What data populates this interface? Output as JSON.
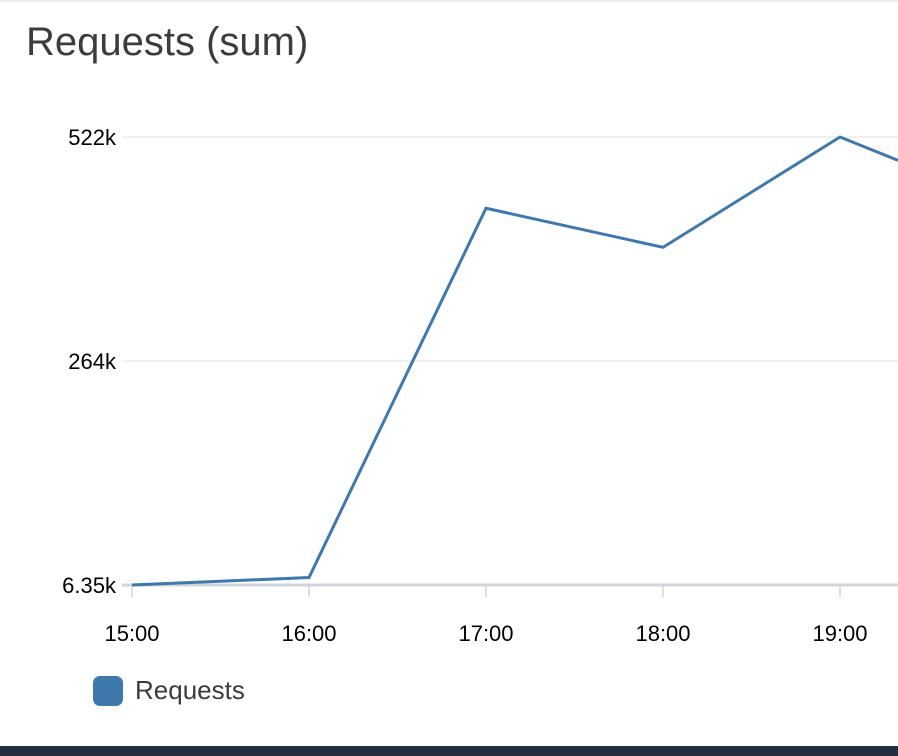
{
  "widget": {
    "title": "Requests (sum)"
  },
  "colors": {
    "series": "#3f78ad",
    "grid": "#e9ebed",
    "baseline": "#d1d5db",
    "text": "#000000",
    "title": "#3c3c3c"
  },
  "chart_data": {
    "type": "line",
    "title": "Requests (sum)",
    "xlabel": "",
    "ylabel": "",
    "x": [
      "15:00",
      "16:00",
      "17:00",
      "18:00",
      "19:00"
    ],
    "x_ticks": [
      "15:00",
      "16:00",
      "17:00",
      "18:00",
      "19:00"
    ],
    "y_ticks": [
      {
        "value": 522000,
        "label": "522k"
      },
      {
        "value": 264000,
        "label": "264k"
      },
      {
        "value": 6350,
        "label": "6.35k"
      }
    ],
    "ylim": [
      6350,
      522000
    ],
    "grid": true,
    "legend": "bottom-left",
    "series": [
      {
        "name": "Requests",
        "color": "#3f78ad",
        "values": [
          6350,
          15000,
          440000,
          395000,
          522000
        ],
        "trailing_value_after_last_tick": 440000
      }
    ]
  }
}
